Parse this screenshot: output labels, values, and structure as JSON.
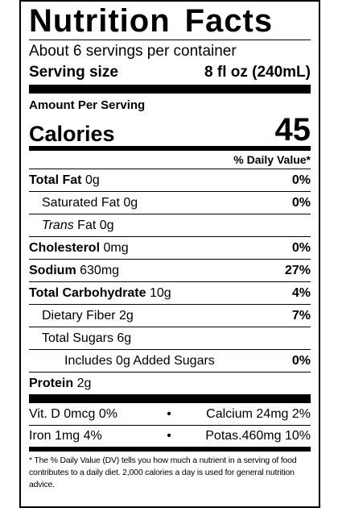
{
  "title_word1": "Nutrition",
  "title_word2": "Facts",
  "servings": "About 6 servings per container",
  "serving_size_label": "Serving size",
  "serving_size_value": "8 fl oz (240mL)",
  "amount_per_serving": "Amount Per Serving",
  "calories_label": "Calories",
  "calories_value": "45",
  "dv_header": "% Daily Value*",
  "nutrients": {
    "total_fat": {
      "name": "Total Fat",
      "amount": "0g",
      "dv": "0%"
    },
    "sat_fat": {
      "name": "Saturated Fat",
      "amount": "0g",
      "dv": "0%"
    },
    "trans_fat": {
      "name_italic": "Trans",
      "name": "Fat",
      "amount": "0g"
    },
    "cholesterol": {
      "name": "Cholesterol",
      "amount": "0mg",
      "dv": "0%"
    },
    "sodium": {
      "name": "Sodium",
      "amount": "630mg",
      "dv": "27%"
    },
    "carb": {
      "name": "Total Carbohydrate",
      "amount": "10g",
      "dv": "4%"
    },
    "fiber": {
      "name": "Dietary Fiber",
      "amount": "2g",
      "dv": "7%"
    },
    "sugars": {
      "name": "Total Sugars",
      "amount": "6g"
    },
    "added_sugars": {
      "name": "Includes 0g Added Sugars",
      "dv": "0%"
    },
    "protein": {
      "name": "Protein",
      "amount": "2g"
    }
  },
  "vitamins": {
    "row1_left": "Vit. D 0mcg 0%",
    "row1_right": "Calcium 24mg 2%",
    "row2_left": "Iron 1mg 4%",
    "row2_right": "Potas.460mg 10%",
    "separator": "•"
  },
  "footnote": "* The % Daily Value (DV) tells you how much a nutrient in a serving of food contributes to a daily diet. 2,000 calories a day is used for general nutrition advice."
}
